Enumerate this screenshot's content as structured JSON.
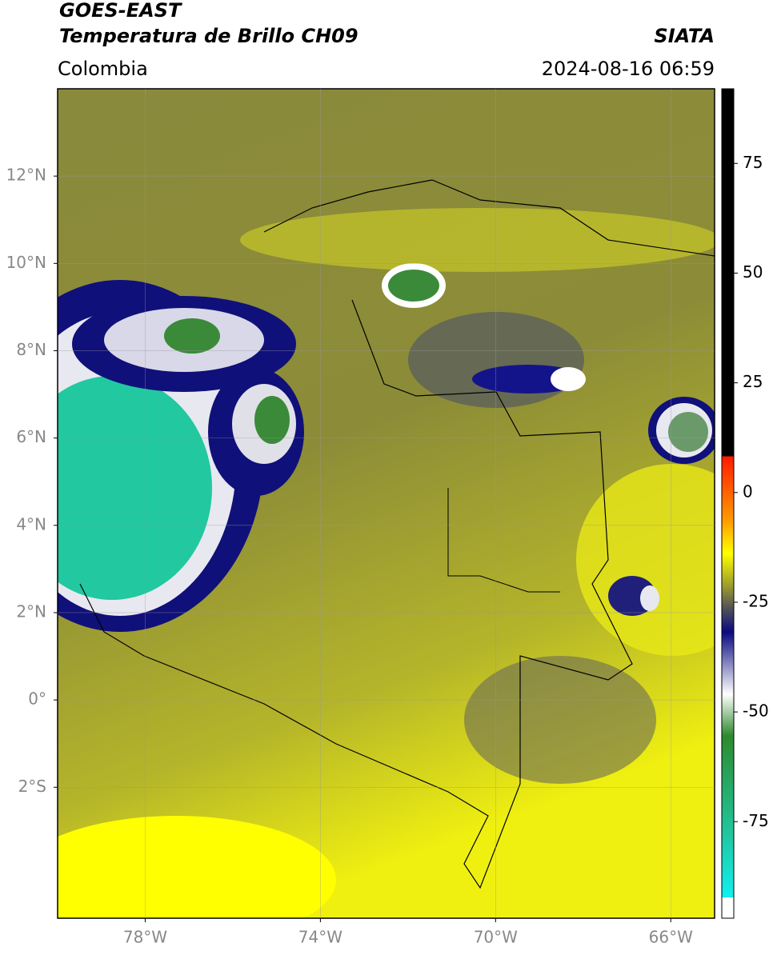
{
  "header": {
    "title": "GOES-EAST",
    "subtitle": "Temperatura de Brillo CH09",
    "source": "SIATA",
    "region": "Colombia",
    "datetime": "2024-08-16 06:59"
  },
  "map": {
    "xlim": [
      -80,
      -65
    ],
    "ylim": [
      -5,
      14
    ],
    "xticks": [
      {
        "value": -78,
        "label": "78°W"
      },
      {
        "value": -74,
        "label": "74°W"
      },
      {
        "value": -70,
        "label": "70°W"
      },
      {
        "value": -66,
        "label": "66°W"
      }
    ],
    "yticks": [
      {
        "value": 12,
        "label": "12°N"
      },
      {
        "value": 10,
        "label": "10°N"
      },
      {
        "value": 8,
        "label": "8°N"
      },
      {
        "value": 6,
        "label": "6°N"
      },
      {
        "value": 4,
        "label": "4°N"
      },
      {
        "value": 2,
        "label": "2°N"
      },
      {
        "value": 0,
        "label": "0°"
      },
      {
        "value": -2,
        "label": "2°S"
      }
    ],
    "grid": true
  },
  "colorbar": {
    "lim": [
      -97,
      92
    ],
    "ticks": [
      75,
      50,
      25,
      0,
      -25,
      -50,
      -75
    ]
  }
}
